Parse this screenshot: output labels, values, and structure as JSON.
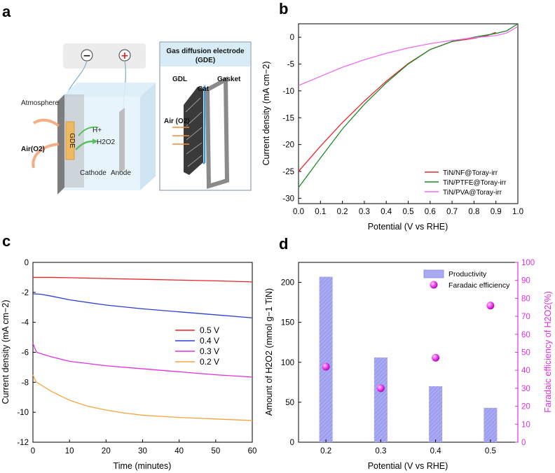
{
  "panel_labels": {
    "a": "a",
    "b": "b",
    "c": "c",
    "d": "d"
  },
  "schematic": {
    "atmosphere": "Atmosphere",
    "air_o2": "Air(O2)",
    "gde_tag": "GDE",
    "h_plus": "H+",
    "h2o2": "H2O2",
    "cathode": "Cathode",
    "anode": "Anode",
    "gde_box_title_1": "Gas diffusion electrode",
    "gde_box_title_2": "(GDE)",
    "gdl": "GDL",
    "cat": "Cat",
    "gasket": "Gasket",
    "air_o2_inset": "Air (O2)",
    "minus": "−",
    "plus": "+"
  },
  "chart_data": [
    {
      "panel": "b",
      "type": "line",
      "xlabel": "Potential (V vs RHE)",
      "ylabel": "Current density (mA cm−2)",
      "xlim": [
        0.0,
        1.0
      ],
      "ylim": [
        -31,
        2.5
      ],
      "xticks": [
        "0.0",
        "0.1",
        "0.2",
        "0.3",
        "0.4",
        "0.5",
        "0.6",
        "0.7",
        "0.8",
        "0.9",
        "1.0"
      ],
      "yticks": [
        "0",
        "-5",
        "-10",
        "-15",
        "-20",
        "-25",
        "-30"
      ],
      "legend_position": "bottom-right",
      "series": [
        {
          "name": "TiN/NF@Toray-irr",
          "color": "#e8262a",
          "x": [
            0.0,
            0.1,
            0.2,
            0.3,
            0.4,
            0.5,
            0.6,
            0.7,
            0.8,
            0.86,
            0.9
          ],
          "y": [
            -25,
            -20.3,
            -15.9,
            -11.9,
            -8.2,
            -4.9,
            -2.3,
            -0.8,
            -0.2,
            0.3,
            0.9
          ]
        },
        {
          "name": "TiN/PTFE@Toray-irr",
          "color": "#1e8a2a",
          "x": [
            0.0,
            0.1,
            0.2,
            0.3,
            0.4,
            0.5,
            0.6,
            0.7,
            0.8,
            0.9,
            0.95,
            1.0
          ],
          "y": [
            -28,
            -22.5,
            -17.1,
            -12.5,
            -8.5,
            -5.0,
            -2.3,
            -0.8,
            0.0,
            0.7,
            1.2,
            2.5
          ]
        },
        {
          "name": "TiN/PVA@Toray-irr",
          "color": "#f06af0",
          "x": [
            0.0,
            0.1,
            0.2,
            0.3,
            0.4,
            0.5,
            0.6,
            0.7,
            0.8,
            0.9,
            0.95,
            1.0
          ],
          "y": [
            -9,
            -7.3,
            -5.6,
            -4.2,
            -3.0,
            -2.0,
            -1.2,
            -0.6,
            -0.1,
            0.3,
            0.8,
            2.0
          ]
        }
      ]
    },
    {
      "panel": "c",
      "type": "line",
      "xlabel": "Time (minutes)",
      "ylabel": "Current density (mA cm−2)",
      "xlim": [
        0,
        60
      ],
      "ylim": [
        -12,
        0
      ],
      "xticks": [
        "0",
        "10",
        "20",
        "30",
        "40",
        "50",
        "60"
      ],
      "yticks": [
        "0",
        "-2",
        "-4",
        "-6",
        "-8",
        "-10",
        "-12"
      ],
      "legend_position": "center-right",
      "series": [
        {
          "name": "0.5 V",
          "color": "#e8262a",
          "x": [
            0,
            5,
            10,
            20,
            30,
            40,
            50,
            60
          ],
          "y": [
            -1.0,
            -1.0,
            -1.02,
            -1.08,
            -1.13,
            -1.18,
            -1.23,
            -1.3
          ]
        },
        {
          "name": "0.4 V",
          "color": "#2b3fd6",
          "x": [
            0,
            2,
            5,
            10,
            20,
            30,
            40,
            50,
            60
          ],
          "y": [
            -2.1,
            -2.12,
            -2.25,
            -2.5,
            -2.85,
            -3.1,
            -3.3,
            -3.5,
            -3.7
          ]
        },
        {
          "name": "0.3 V",
          "color": "#e030e0",
          "x": [
            0,
            0.5,
            1,
            3,
            5,
            10,
            20,
            30,
            40,
            50,
            60
          ],
          "y": [
            -5.4,
            -5.7,
            -6.0,
            -6.15,
            -6.3,
            -6.6,
            -6.9,
            -7.1,
            -7.3,
            -7.5,
            -7.65
          ]
        },
        {
          "name": "0.2 V",
          "color": "#f2a540",
          "x": [
            0,
            0.5,
            1,
            3,
            5,
            10,
            15,
            20,
            25,
            30,
            40,
            50,
            60
          ],
          "y": [
            -7.5,
            -7.8,
            -8.0,
            -8.3,
            -8.6,
            -9.2,
            -9.6,
            -9.85,
            -10.05,
            -10.2,
            -10.35,
            -10.45,
            -10.55
          ]
        }
      ]
    },
    {
      "panel": "d",
      "type": "bar",
      "xlabel": "Potential (V vs RHE)",
      "ylabel": "Amount of H2O2 (mmol g−1 TiN)",
      "y2label": "Faradaic efficiency of H2O2(%)",
      "categories": [
        "0.2",
        "0.3",
        "0.4",
        "0.5"
      ],
      "ylim": [
        0,
        225
      ],
      "y2lim": [
        0,
        100
      ],
      "yticks": [
        "0",
        "50",
        "100",
        "150",
        "200"
      ],
      "y2ticks": [
        "0",
        "10",
        "20",
        "30",
        "40",
        "50",
        "60",
        "70",
        "80",
        "90",
        "100"
      ],
      "legend_position": "top-right",
      "series": [
        {
          "name": "Productivity",
          "color": "#9b9bef",
          "axis": "left",
          "values": [
            207,
            106,
            70,
            43
          ]
        },
        {
          "name": "Faradaic efficiency",
          "color": "#e030e0",
          "axis": "right",
          "values": [
            42,
            30,
            47,
            76
          ]
        }
      ]
    }
  ]
}
